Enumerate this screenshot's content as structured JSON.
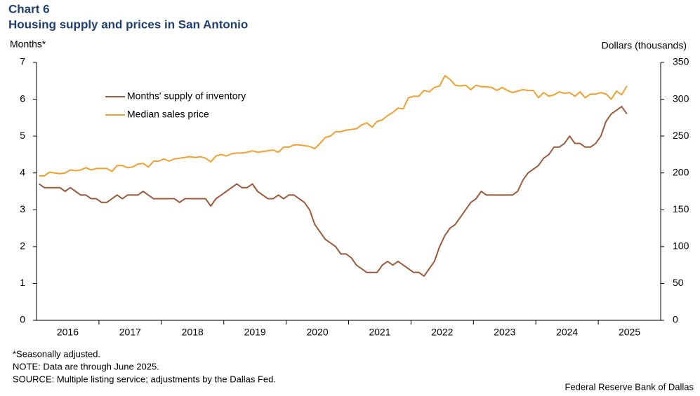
{
  "chart_data": {
    "type": "line",
    "title": "Chart 6",
    "subtitle": "Housing supply and prices in San Antonio",
    "ylabel": "Months*",
    "y2label": "Dollars (thousands)",
    "notes": [
      "*Seasonally adjusted.",
      "NOTE: Data are through June 2025.",
      "SOURCE: Multiple listing service; adjustments by the Dallas Fed."
    ],
    "credit": "Federal Reserve Bank of Dallas",
    "legend": "upper left",
    "categories": [
      null,
      null,
      null,
      null,
      null,
      null,
      "2016",
      null,
      null,
      null,
      null,
      null,
      null,
      null,
      null,
      null,
      null,
      null,
      "2017",
      null,
      null,
      null,
      null,
      null,
      null,
      null,
      null,
      null,
      null,
      null,
      "2018",
      null,
      null,
      null,
      null,
      null,
      null,
      null,
      null,
      null,
      null,
      null,
      "2019",
      null,
      null,
      null,
      null,
      null,
      null,
      null,
      null,
      null,
      null,
      null,
      "2020",
      null,
      null,
      null,
      null,
      null,
      null,
      null,
      null,
      null,
      null,
      null,
      "2021",
      null,
      null,
      null,
      null,
      null,
      null,
      null,
      null,
      null,
      null,
      null,
      "2022",
      null,
      null,
      null,
      null,
      null,
      null,
      null,
      null,
      null,
      null,
      null,
      "2023",
      null,
      null,
      null,
      null,
      null,
      null,
      null,
      null,
      null,
      null,
      null,
      "2024",
      null,
      null,
      null,
      null,
      null,
      null,
      null,
      null,
      null,
      null,
      null,
      "2025",
      null,
      null,
      null,
      null,
      null
    ],
    "series": [
      {
        "name": "Months' supply of inventory",
        "color": "#9a5b3c",
        "axis": "y",
        "values": [
          3.7,
          3.6,
          3.6,
          3.6,
          3.6,
          3.5,
          3.6,
          3.5,
          3.4,
          3.4,
          3.3,
          3.3,
          3.2,
          3.2,
          3.3,
          3.4,
          3.3,
          3.4,
          3.4,
          3.4,
          3.5,
          3.4,
          3.3,
          3.3,
          3.3,
          3.3,
          3.3,
          3.2,
          3.3,
          3.3,
          3.3,
          3.3,
          3.3,
          3.1,
          3.3,
          3.4,
          3.5,
          3.6,
          3.7,
          3.6,
          3.6,
          3.7,
          3.5,
          3.4,
          3.3,
          3.3,
          3.4,
          3.3,
          3.4,
          3.4,
          3.3,
          3.2,
          3.0,
          2.6,
          2.4,
          2.2,
          2.1,
          2.0,
          1.8,
          1.8,
          1.7,
          1.5,
          1.4,
          1.3,
          1.3,
          1.3,
          1.5,
          1.6,
          1.5,
          1.6,
          1.5,
          1.4,
          1.3,
          1.3,
          1.2,
          1.4,
          1.6,
          2.0,
          2.3,
          2.5,
          2.6,
          2.8,
          3.0,
          3.2,
          3.3,
          3.5,
          3.4,
          3.4,
          3.4,
          3.4,
          3.4,
          3.4,
          3.5,
          3.8,
          4.0,
          4.1,
          4.2,
          4.4,
          4.5,
          4.7,
          4.7,
          4.8,
          5.0,
          4.8,
          4.8,
          4.7,
          4.7,
          4.8,
          5.0,
          5.4,
          5.6,
          5.7,
          5.8,
          5.6,
          null,
          null,
          null,
          null,
          null,
          null
        ]
      },
      {
        "name": "Median sales price",
        "color": "#f0a030",
        "axis": "y2",
        "values": [
          196,
          196,
          201,
          200,
          199,
          200,
          204,
          203,
          204,
          207,
          204,
          206,
          206,
          206,
          202,
          210,
          210,
          207,
          208,
          212,
          213,
          208,
          216,
          216,
          219,
          216,
          219,
          220,
          221,
          222,
          221,
          222,
          220,
          215,
          223,
          225,
          223,
          226,
          227,
          227,
          228,
          230,
          228,
          229,
          230,
          231,
          228,
          235,
          235,
          238,
          238,
          237,
          236,
          233,
          240,
          248,
          250,
          256,
          256,
          258,
          259,
          260,
          265,
          268,
          262,
          270,
          272,
          278,
          282,
          288,
          287,
          302,
          304,
          304,
          312,
          310,
          316,
          318,
          332,
          327,
          319,
          318,
          319,
          313,
          319,
          317,
          317,
          316,
          312,
          316,
          312,
          309,
          311,
          313,
          312,
          312,
          302,
          309,
          304,
          306,
          310,
          308,
          309,
          304,
          310,
          302,
          307,
          307,
          309,
          307,
          300,
          311,
          306,
          318,
          null,
          null,
          null,
          null,
          null,
          null
        ]
      }
    ],
    "ylim": [
      0,
      7
    ],
    "yticks": [
      0,
      1,
      2,
      3,
      4,
      5,
      6,
      7
    ],
    "y2lim": [
      0,
      350
    ],
    "y2ticks": [
      0,
      50,
      100,
      150,
      200,
      250,
      300,
      350
    ]
  }
}
